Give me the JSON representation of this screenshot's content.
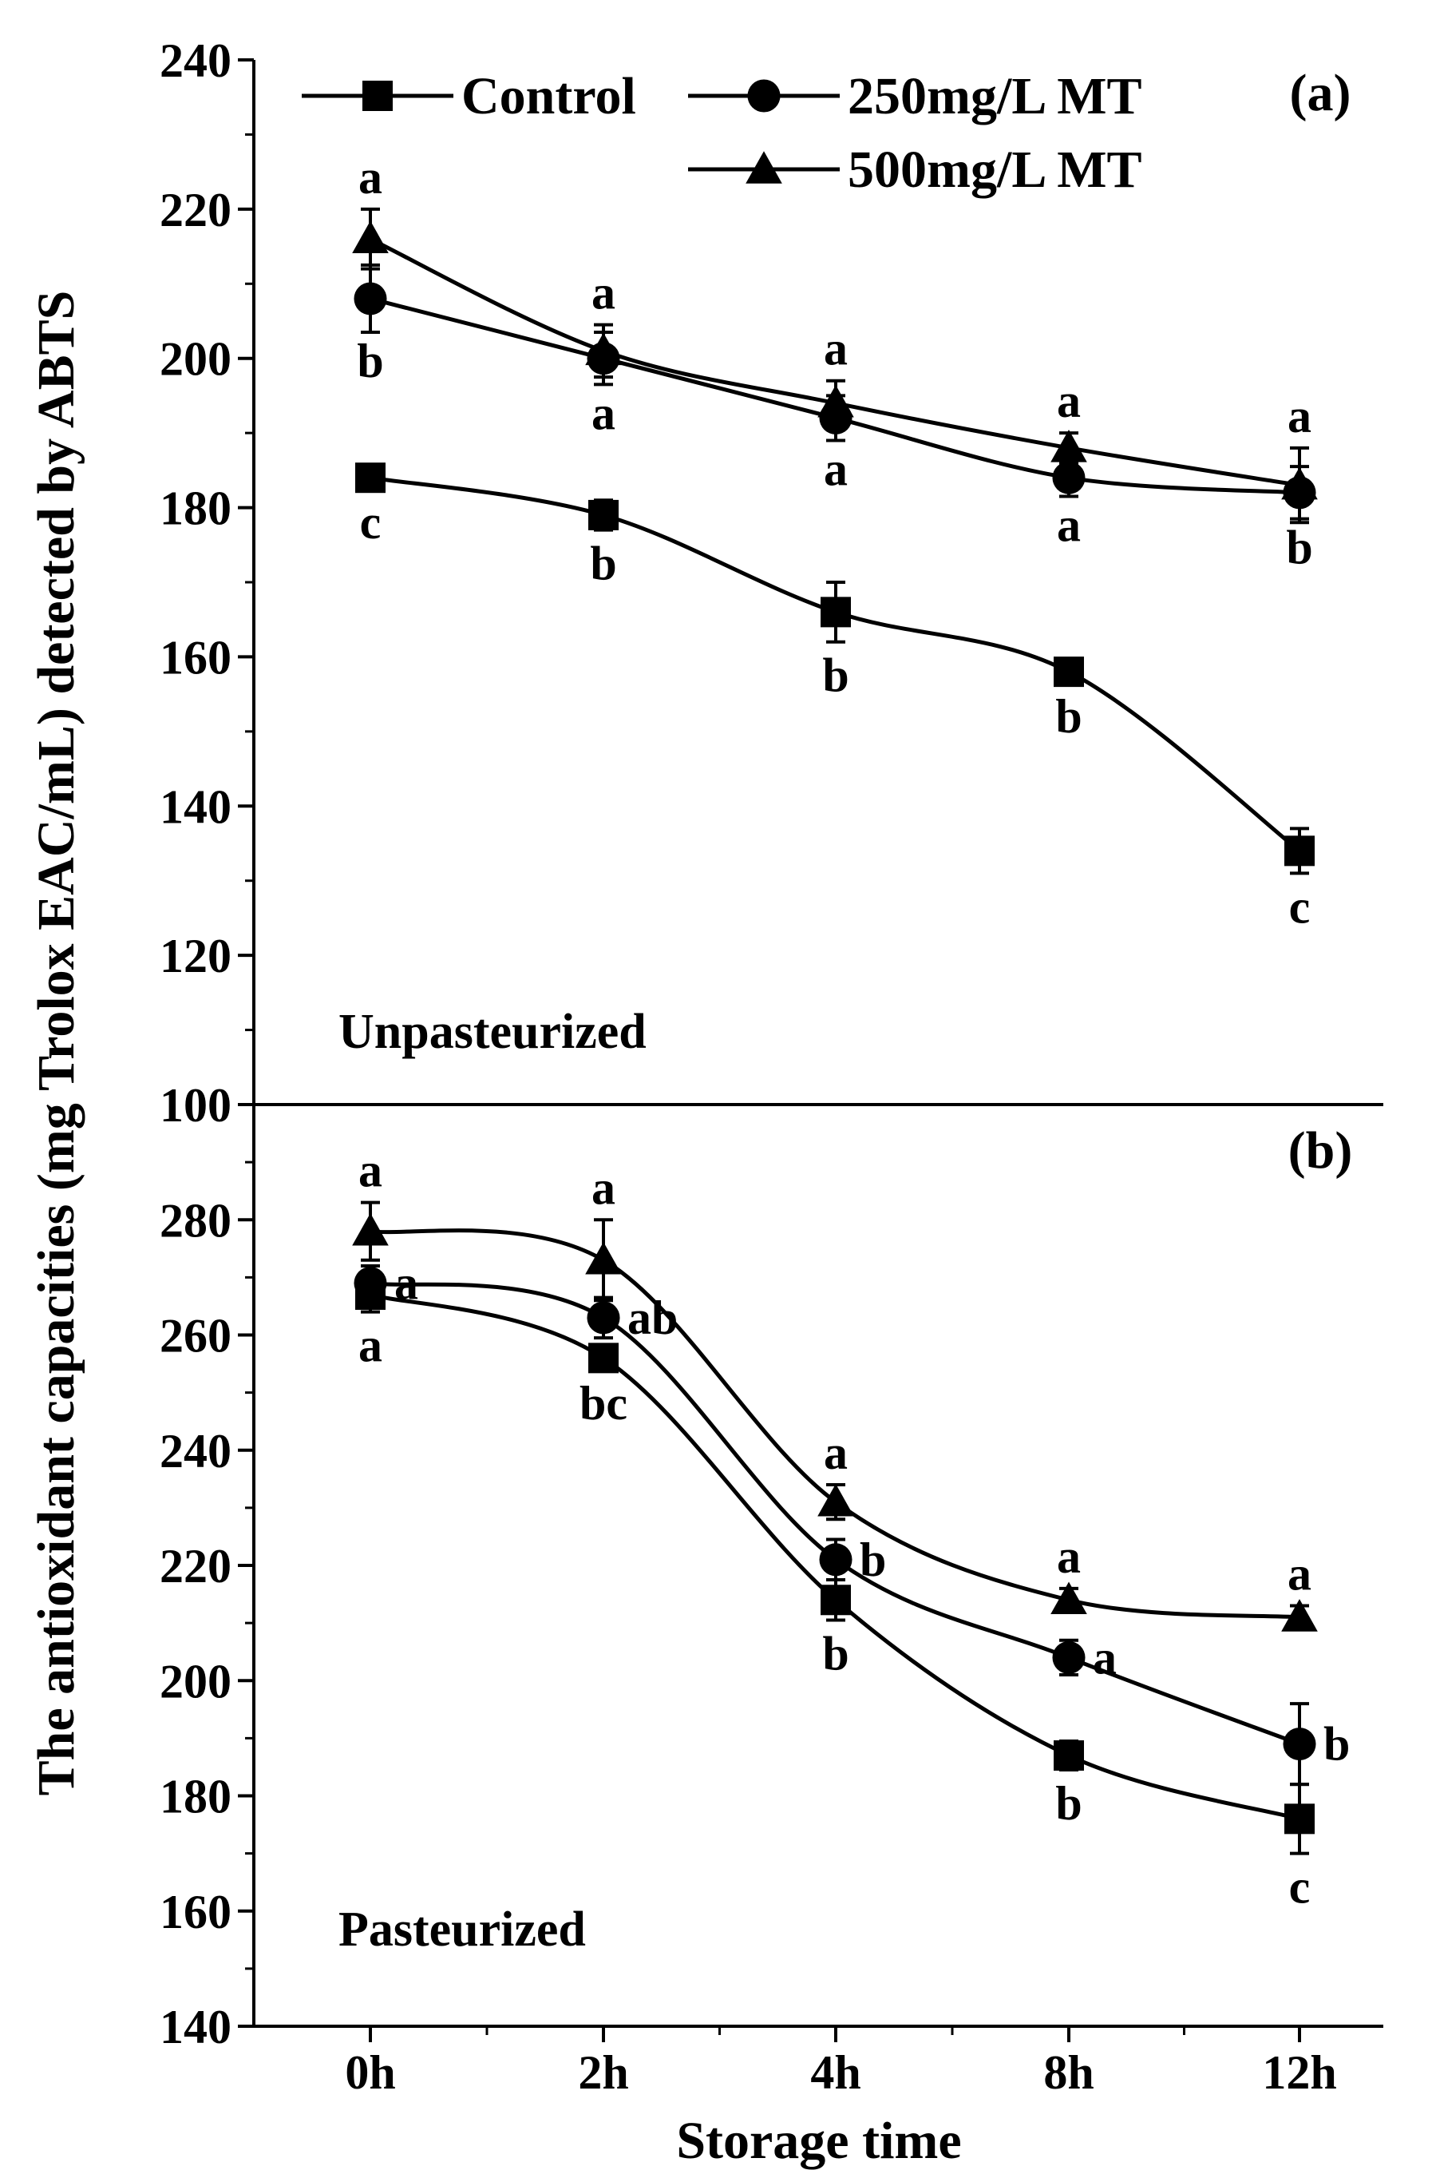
{
  "chart_data": {
    "type": "line",
    "xlabel": "Storage time",
    "ylabel": "The antioxidant capacities (mg Trolox EAC/mL) detected by ABTS",
    "categories": [
      "0h",
      "2h",
      "4h",
      "8h",
      "12h"
    ],
    "legend": {
      "placement": "top",
      "entries": [
        {
          "name": "Control",
          "marker": "square"
        },
        {
          "name": "250mg/L MT",
          "marker": "circle"
        },
        {
          "name": "500mg/L MT",
          "marker": "triangle"
        }
      ]
    },
    "panels": [
      {
        "id": "a",
        "label": "(a)",
        "condition": "Unpasteurized",
        "ylim": [
          100,
          240
        ],
        "yticks": [
          100,
          120,
          140,
          160,
          180,
          200,
          220,
          240
        ],
        "series": [
          {
            "name": "Control",
            "marker": "square",
            "values": [
              184,
              179,
              166,
              158,
              134
            ],
            "errors": [
              1.5,
              2,
              4,
              1.5,
              3
            ],
            "letters": [
              "c",
              "b",
              "b",
              "b",
              "c"
            ]
          },
          {
            "name": "250mg/L MT",
            "marker": "circle",
            "values": [
              208,
              200,
              192,
              184,
              182
            ],
            "errors": [
              4.5,
              3.5,
              3,
              2.5,
              3.5
            ],
            "letters": [
              "b",
              "a",
              "a",
              "a",
              "b"
            ]
          },
          {
            "name": "500mg/L MT",
            "marker": "triangle",
            "values": [
              216,
              201,
              194,
              188,
              183
            ],
            "errors": [
              4,
              3.5,
              3,
              2,
              5
            ],
            "letters": [
              "a",
              "a",
              "a",
              "a",
              "a"
            ]
          }
        ]
      },
      {
        "id": "b",
        "label": "(b)",
        "condition": "Pasteurized",
        "ylim": [
          140,
          300
        ],
        "yticks": [
          140,
          160,
          180,
          200,
          220,
          240,
          260,
          280
        ],
        "series": [
          {
            "name": "Control",
            "marker": "square",
            "values": [
              267,
              256,
              214,
              187,
              176
            ],
            "errors": [
              3,
              2,
              3.5,
              2.5,
              6
            ],
            "letters": [
              "a",
              "bc",
              "b",
              "b",
              "c"
            ]
          },
          {
            "name": "250mg/L MT",
            "marker": "circle",
            "values": [
              269,
              263,
              221,
              204,
              189
            ],
            "errors": [
              3,
              3.5,
              3.5,
              3,
              7
            ],
            "letters": [
              "a",
              "ab",
              "b",
              "a",
              "b"
            ]
          },
          {
            "name": "500mg/L MT",
            "marker": "triangle",
            "values": [
              278,
              273,
              231,
              214,
              211
            ],
            "errors": [
              5,
              7,
              3,
              2,
              2
            ],
            "letters": [
              "a",
              "a",
              "a",
              "a",
              "a"
            ]
          }
        ]
      }
    ]
  }
}
